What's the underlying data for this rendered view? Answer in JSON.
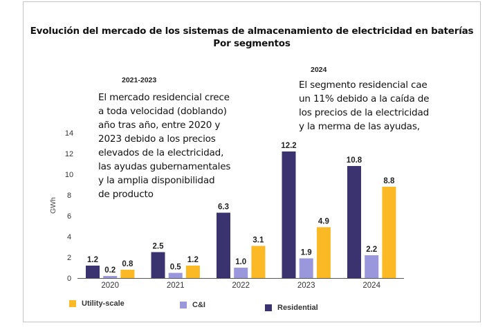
{
  "chart_data": {
    "type": "bar",
    "title": "Evolución del mercado de los sistemas de almacenamiento de electricidad en baterías",
    "subtitle": "Por segmentos",
    "xlabel": "",
    "ylabel": "GWh",
    "ylim": [
      0,
      14
    ],
    "yticks": [
      "0",
      "2",
      "4",
      "6",
      "8",
      "10",
      "12",
      "14"
    ],
    "grid": false,
    "categories": [
      "2020",
      "2021",
      "2022",
      "2023",
      "2024"
    ],
    "series": [
      {
        "name": "Residential",
        "color": "#3b336f",
        "values": [
          1.2,
          2.5,
          6.3,
          12.2,
          10.8
        ],
        "labels": [
          "1.2",
          "2.5",
          "6.3",
          "12.2",
          "10.8"
        ]
      },
      {
        "name": "C&I",
        "color": "#9b97dc",
        "values": [
          0.2,
          0.5,
          1.0,
          1.9,
          2.2
        ],
        "labels": [
          "0.2",
          "0.5",
          "1.0",
          "1.9",
          "2.2"
        ]
      },
      {
        "name": "Utility-scale",
        "color": "#fbb926",
        "values": [
          0.8,
          1.2,
          3.1,
          4.9,
          8.8
        ],
        "labels": [
          "0.8",
          "1.2",
          "3.1",
          "4.9",
          "8.8"
        ]
      }
    ],
    "legend": {
      "placement": "bottom",
      "order": [
        "Utility-scale",
        "C&I",
        "Residential"
      ]
    },
    "annotations": [
      {
        "heading": "2021-2023",
        "text": "El mercado residencial crece\na toda velocidad (doblando)\naño tras año, entre 2020 y\n2023 debido a los precios\nelevados de la electricidad,\nlas ayudas gubernamentales\ny la amplia disponibilidad\nde producto"
      },
      {
        "heading": "2024",
        "text": "El segmento residencial cae\nun 11% debido a la caída de\nlos precios de la electricidad\ny la merma de las ayudas,"
      }
    ]
  }
}
